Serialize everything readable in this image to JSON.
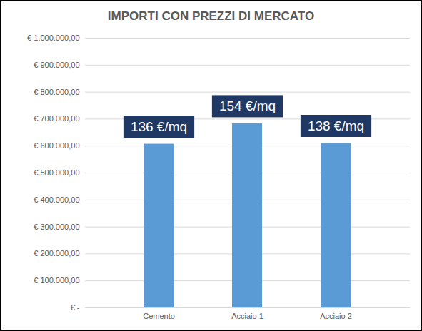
{
  "chart_data": {
    "type": "bar",
    "title": "IMPORTI CON PREZZI DI MERCATO",
    "categories": [
      "Cemento",
      "Acciaio 1",
      "Acciaio 2"
    ],
    "values": [
      607000,
      683000,
      610000
    ],
    "annotations": [
      "136 €/mq",
      "154 €/mq",
      "138 €/mq"
    ],
    "color": "#5b9bd5",
    "ylim": [
      0,
      1000000
    ],
    "yticks": [
      {
        "value": 0,
        "label": "€ -"
      },
      {
        "value": 100000,
        "label": "€ 100.000,00"
      },
      {
        "value": 200000,
        "label": "€ 200.000,00"
      },
      {
        "value": 300000,
        "label": "€ 300.000,00"
      },
      {
        "value": 400000,
        "label": "€ 400.000,00"
      },
      {
        "value": 500000,
        "label": "€ 500.000,00"
      },
      {
        "value": 600000,
        "label": "€ 600.000,00"
      },
      {
        "value": 700000,
        "label": "€ 700.000,00"
      },
      {
        "value": 800000,
        "label": "€ 800.000,00"
      },
      {
        "value": 900000,
        "label": "€ 900.000,00"
      },
      {
        "value": 1000000,
        "label": "€ 1.000.000,00"
      }
    ],
    "grid": true
  }
}
